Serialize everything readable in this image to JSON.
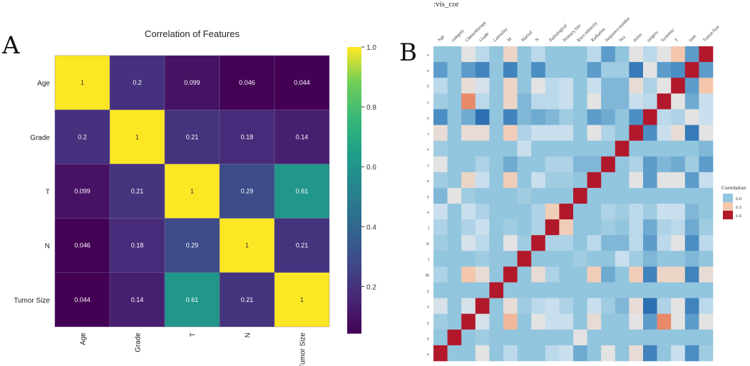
{
  "panel_labels": {
    "a": "A",
    "b": "B"
  },
  "chart_data": [
    {
      "type": "heatmap",
      "title": "Correlation of Features",
      "x_labels": [
        "Age",
        "Grade",
        "T",
        "N",
        "Tumor Size"
      ],
      "y_labels": [
        "Age",
        "Grade",
        "T",
        "N",
        "Tumor Size"
      ],
      "values": [
        [
          1,
          0.2,
          0.099,
          0.046,
          0.044
        ],
        [
          0.2,
          1,
          0.21,
          0.18,
          0.14
        ],
        [
          0.099,
          0.21,
          1,
          0.29,
          0.61
        ],
        [
          0.046,
          0.18,
          0.29,
          1,
          0.21
        ],
        [
          0.044,
          0.14,
          0.61,
          0.21,
          1
        ]
      ],
      "value_labels": [
        [
          "1",
          "0.2",
          "0.099",
          "0.046",
          "0.044"
        ],
        [
          "0.2",
          "1",
          "0.21",
          "0.18",
          "0.14"
        ],
        [
          "0.099",
          "0.21",
          "1",
          "0.29",
          "0.61"
        ],
        [
          "0.046",
          "0.18",
          "0.29",
          "1",
          "0.21"
        ],
        [
          "0.044",
          "0.14",
          "0.61",
          "0.21",
          "1"
        ]
      ],
      "colormap": "viridis",
      "colorbar": {
        "range": [
          0.044,
          1.0
        ],
        "ticks": [
          1.0,
          0.8,
          0.6,
          0.4,
          0.2
        ],
        "tick_labels": [
          "1.0",
          "0.8",
          "0.6",
          "0.4",
          "0.2"
        ]
      }
    },
    {
      "type": "heatmap",
      "title": ":vis_cor",
      "x_labels": [
        "Age",
        "category",
        "Chemotherapy",
        "Grade",
        "Laterality",
        "M",
        "Marital",
        "N",
        "Pathological",
        "Primary.Site",
        "Race.ethnicity",
        "Radiation",
        "Sequence.number",
        "Sex",
        "status",
        "surgery",
        "Systemic",
        "T",
        "time",
        "Tumor.Size"
      ],
      "y_labels": [
        "e",
        "e",
        "T",
        "c",
        "y",
        "s",
        "x",
        "r",
        "n",
        "y",
        "e",
        "l",
        "N",
        "l",
        "M",
        "y",
        "e",
        "y",
        "y",
        "e"
      ],
      "values": [
        [
          0,
          0,
          0.3,
          0.15,
          0,
          0.4,
          0,
          0.15,
          0,
          0,
          0,
          0.15,
          -0.15,
          0,
          0.3,
          0.15,
          0.3,
          0.5,
          -0.15,
          1
        ],
        [
          -0.15,
          0,
          -0.15,
          -0.25,
          0,
          -0.25,
          0,
          -0.2,
          0,
          0,
          0,
          -0.15,
          0.05,
          0.05,
          -0.3,
          0.3,
          -0.15,
          -0.2,
          1,
          -0.15
        ],
        [
          0.15,
          0,
          0.35,
          0.25,
          0,
          0.4,
          0,
          0.3,
          0.15,
          0.2,
          0,
          0.2,
          -0.05,
          -0.05,
          0.35,
          0.1,
          0.3,
          1,
          -0.15,
          0.5
        ],
        [
          0.05,
          0,
          0.7,
          0.15,
          0,
          0.4,
          -0.05,
          0.15,
          0.15,
          0.2,
          0,
          0.3,
          -0.05,
          -0.05,
          0.2,
          0.15,
          1,
          0.3,
          -0.1,
          0.2
        ],
        [
          -0.2,
          0,
          -0.1,
          -0.35,
          0,
          -0.25,
          -0.05,
          -0.1,
          -0.05,
          0.05,
          0,
          -0.15,
          -0.1,
          0,
          -0.2,
          1,
          0.15,
          0.1,
          0.3,
          0.2
        ],
        [
          0.35,
          0,
          0.35,
          0.35,
          0,
          0.45,
          0.1,
          0.2,
          0.2,
          0.2,
          0,
          0.3,
          0.1,
          0,
          1,
          -0.2,
          0.2,
          0.35,
          -0.3,
          0.3
        ],
        [
          0.05,
          0,
          0,
          0,
          0,
          0,
          0.2,
          0,
          0,
          0,
          0,
          0,
          0,
          1,
          0,
          0,
          0,
          0,
          0,
          -0.05
        ],
        [
          0.3,
          0,
          0,
          0.1,
          0,
          -0.1,
          0,
          0,
          0.1,
          0.1,
          -0.05,
          -0.05,
          1,
          0,
          0.1,
          -0.15,
          -0.05,
          -0.1,
          0.05,
          -0.15
        ],
        [
          0.05,
          0,
          0.4,
          0.2,
          0,
          0.45,
          0,
          0.2,
          0.05,
          0.05,
          0,
          1,
          0,
          0,
          0.3,
          -0.15,
          0.3,
          0.3,
          -0.15,
          0.2
        ],
        [
          -0.05,
          0.3,
          0.05,
          0,
          0,
          0,
          0.05,
          0,
          0,
          0,
          1,
          0,
          0,
          0,
          0,
          0,
          0,
          0,
          0,
          0
        ],
        [
          0.2,
          0,
          0.2,
          0.1,
          0,
          0,
          0,
          0.1,
          0.45,
          1,
          0,
          0,
          0.1,
          0.05,
          0.15,
          0.05,
          0.2,
          0.2,
          -0.05,
          0
        ],
        [
          0.1,
          0,
          0.1,
          0.2,
          0,
          0.05,
          0,
          0.1,
          1,
          0.45,
          0,
          0,
          0.05,
          0,
          0.15,
          -0.1,
          0.1,
          0.15,
          -0.1,
          0.05
        ],
        [
          0.05,
          0,
          0.25,
          0.15,
          0,
          0.3,
          0.05,
          1,
          0.1,
          0.1,
          0,
          0.15,
          -0.05,
          -0.05,
          0.15,
          -0.15,
          0.15,
          0.3,
          -0.2,
          0.15
        ],
        [
          0,
          0,
          0,
          0.05,
          0,
          0,
          1,
          0,
          0,
          0,
          0.05,
          0,
          0,
          0.2,
          0.05,
          -0.05,
          0,
          0,
          -0.05,
          0
        ],
        [
          0.1,
          0,
          0.5,
          0.35,
          0,
          1,
          0,
          0.35,
          0.1,
          0,
          0,
          0.45,
          -0.1,
          0,
          0.45,
          -0.25,
          0.4,
          0.4,
          -0.25,
          0.35
        ],
        [
          0,
          0,
          0,
          0,
          1,
          0,
          0,
          0,
          0,
          0,
          0,
          0,
          0,
          0,
          0,
          0,
          0,
          0,
          0,
          0
        ],
        [
          0.25,
          0,
          0.25,
          1,
          0,
          0.35,
          0.05,
          0.15,
          0.2,
          0.1,
          0,
          0.2,
          0.05,
          -0.05,
          0.35,
          -0.35,
          0.1,
          0.3,
          -0.25,
          0.15
        ],
        [
          0.05,
          0,
          1,
          0.25,
          0,
          0.55,
          0,
          0.3,
          0.2,
          0.2,
          0,
          0.35,
          0,
          0,
          0.3,
          -0.15,
          0.7,
          0.3,
          -0.15,
          0.3
        ],
        [
          0,
          1,
          0,
          0.05,
          0,
          0,
          0,
          0,
          0,
          0,
          0.3,
          0,
          0,
          0,
          0,
          0,
          0,
          0,
          0,
          0
        ],
        [
          1,
          0,
          0,
          0.3,
          0,
          0.15,
          0,
          0,
          0.15,
          0.2,
          -0.1,
          0,
          0.3,
          0,
          0.35,
          -0.25,
          0,
          0.2,
          -0.2,
          0.05
        ]
      ],
      "legend": {
        "title": "Correlation",
        "entries": [
          "0.0",
          "0.5",
          "1.0"
        ],
        "colors": [
          "#92c5de",
          "#f4c6ab",
          "#b2182b"
        ],
        "placement": "right"
      }
    }
  ]
}
